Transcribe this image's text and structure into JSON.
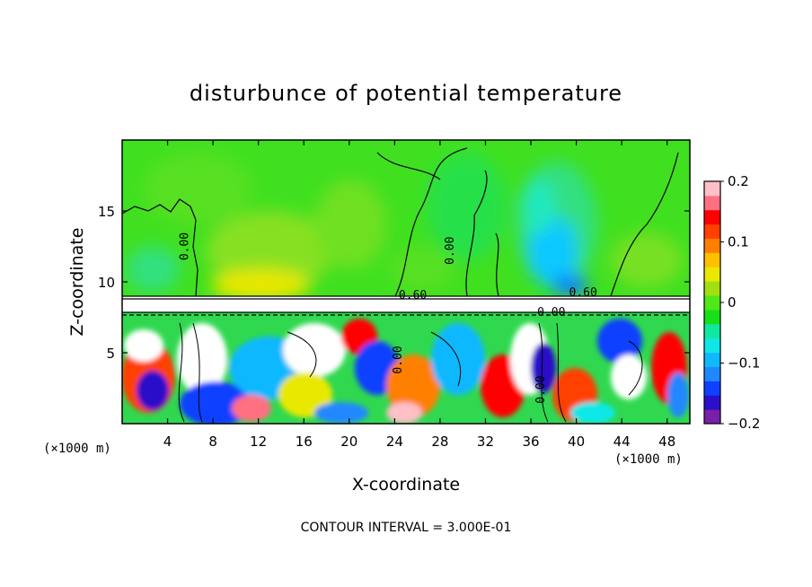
{
  "chart_data": {
    "type": "heatmap",
    "title": "disturbunce of potential temperature",
    "xlabel": "X-coordinate",
    "ylabel": "Z-coordinate",
    "x_unit_label": "(×1000 m)",
    "y_unit_label": "(×1000 m)",
    "xlim": [
      0,
      50
    ],
    "ylim": [
      0,
      20
    ],
    "x_ticks": [
      "4",
      "8",
      "12",
      "16",
      "20",
      "24",
      "28",
      "32",
      "36",
      "40",
      "44",
      "48"
    ],
    "x_tick_values": [
      4,
      8,
      12,
      16,
      20,
      24,
      28,
      32,
      36,
      40,
      44,
      48
    ],
    "y_ticks": [
      "5",
      "10",
      "15"
    ],
    "y_tick_values": [
      5,
      10,
      15
    ],
    "colorbar": {
      "min": -0.2,
      "max": 0.2,
      "ticks": [
        "0.2",
        "0.1",
        "0",
        "−0.1",
        "−0.2"
      ],
      "tick_values": [
        0.2,
        0.1,
        0,
        -0.1,
        -0.2
      ],
      "colors": [
        "#7a1fa8",
        "#2a10c8",
        "#1040ff",
        "#2088ff",
        "#10b8ff",
        "#10e8e8",
        "#10e8a0",
        "#18e018",
        "#50e818",
        "#a0e010",
        "#e8e800",
        "#ffc000",
        "#ff8000",
        "#ff4000",
        "#ff0000",
        "#ff7080",
        "#ffc0c8"
      ]
    },
    "contour_interval_text": "CONTOUR INTERVAL = 3.000E-01",
    "contour_labels": [
      {
        "text": "0.00",
        "x": 5.8,
        "z": 12.5
      },
      {
        "text": "0.00",
        "x": 29.2,
        "z": 12.2
      },
      {
        "text": "0.60",
        "x": 25.6,
        "z": 8.8
      },
      {
        "text": "0.60",
        "x": 40.6,
        "z": 9.0
      },
      {
        "text": "0.00",
        "x": 37.8,
        "z": 7.6
      },
      {
        "text": "0.00",
        "x": 24.6,
        "z": 4.5
      },
      {
        "text": "0.00",
        "x": 37.2,
        "z": 2.4
      }
    ],
    "inversion_level_z": 9.0,
    "grid": false,
    "colorbar_position": "right"
  }
}
